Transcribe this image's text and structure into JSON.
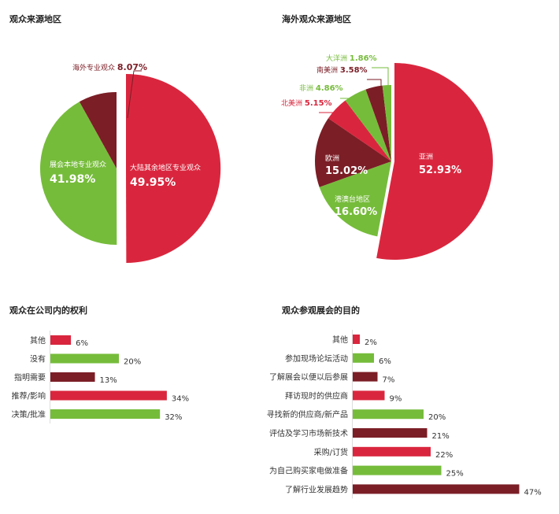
{
  "charts": {
    "pie_origin": {
      "title": "观众来源地区",
      "slices": [
        {
          "label": "大陆其余地区专业观众",
          "value_text": "49.95%",
          "color": "#d9263e"
        },
        {
          "label": "展会本地专业观众",
          "value_text": "41.98%",
          "color": "#76bc3b"
        },
        {
          "label": "海外专业观众",
          "value_text": "8.07%",
          "color": "#7b1e26"
        }
      ]
    },
    "pie_overseas": {
      "title": "海外观众来源地区",
      "slices": [
        {
          "label": "亚洲",
          "value_text": "52.93%",
          "color": "#d9263e"
        },
        {
          "label": "港澳台地区",
          "value_text": "16.60%",
          "color": "#76bc3b"
        },
        {
          "label": "欧洲",
          "value_text": "15.02%",
          "color": "#7b1e26"
        },
        {
          "label": "北美洲",
          "value_text": "5.15%",
          "color": "#d9263e"
        },
        {
          "label": "非洲",
          "value_text": "4.86%",
          "color": "#76bc3b"
        },
        {
          "label": "南美洲",
          "value_text": "3.58%",
          "color": "#7b1e26"
        },
        {
          "label": "大洋洲",
          "value_text": "1.86%",
          "color": "#76bc3b"
        }
      ]
    },
    "bars_rights": {
      "title": "观众在公司内的权利",
      "rows": [
        {
          "label": "其他",
          "value_text": "6%",
          "color": "#d9263e"
        },
        {
          "label": "没有",
          "value_text": "20%",
          "color": "#76bc3b"
        },
        {
          "label": "指明需要",
          "value_text": "13%",
          "color": "#7b1e26"
        },
        {
          "label": "推荐/影响",
          "value_text": "34%",
          "color": "#d9263e"
        },
        {
          "label": "决策/批准",
          "value_text": "32%",
          "color": "#76bc3b"
        }
      ]
    },
    "bars_purpose": {
      "title": "观众参观展会的目的",
      "rows": [
        {
          "label": "其他",
          "value_text": "2%",
          "color": "#d9263e"
        },
        {
          "label": "参加现场论坛活动",
          "value_text": "6%",
          "color": "#76bc3b"
        },
        {
          "label": "了解展会以便以后参展",
          "value_text": "7%",
          "color": "#7b1e26"
        },
        {
          "label": "拜访现时的供应商",
          "value_text": "9%",
          "color": "#d9263e"
        },
        {
          "label": "寻找新的供应商/新产品",
          "value_text": "20%",
          "color": "#76bc3b"
        },
        {
          "label": "评估及学习市场新技术",
          "value_text": "21%",
          "color": "#7b1e26"
        },
        {
          "label": "采购/订货",
          "value_text": "22%",
          "color": "#d9263e"
        },
        {
          "label": "为自己购买家电做准备",
          "value_text": "25%",
          "color": "#76bc3b"
        },
        {
          "label": "了解行业发展趋势",
          "value_text": "47%",
          "color": "#7b1e26"
        }
      ]
    }
  },
  "chart_data": [
    {
      "type": "pie",
      "title": "观众来源地区",
      "categories": [
        "大陆其余地区专业观众",
        "展会本地专业观众",
        "海外专业观众"
      ],
      "values": [
        49.95,
        41.98,
        8.07
      ]
    },
    {
      "type": "pie",
      "title": "海外观众来源地区",
      "categories": [
        "亚洲",
        "港澳台地区",
        "欧洲",
        "北美洲",
        "非洲",
        "南美洲",
        "大洋洲"
      ],
      "values": [
        52.93,
        16.6,
        15.02,
        5.15,
        4.86,
        3.58,
        1.86
      ]
    },
    {
      "type": "bar",
      "title": "观众在公司内的权利",
      "categories": [
        "其他",
        "没有",
        "指明需要",
        "推荐/影响",
        "决策/批准"
      ],
      "values": [
        6,
        20,
        13,
        34,
        32
      ]
    },
    {
      "type": "bar",
      "title": "观众参观展会的目的",
      "categories": [
        "其他",
        "参加现场论坛活动",
        "了解展会以便以后参展",
        "拜访现时的供应商",
        "寻找新的供应商/新产品",
        "评估及学习市场新技术",
        "采购/订货",
        "为自己购买家电做准备",
        "了解行业发展趋势"
      ],
      "values": [
        2,
        6,
        7,
        9,
        20,
        21,
        22,
        25,
        47
      ]
    }
  ]
}
